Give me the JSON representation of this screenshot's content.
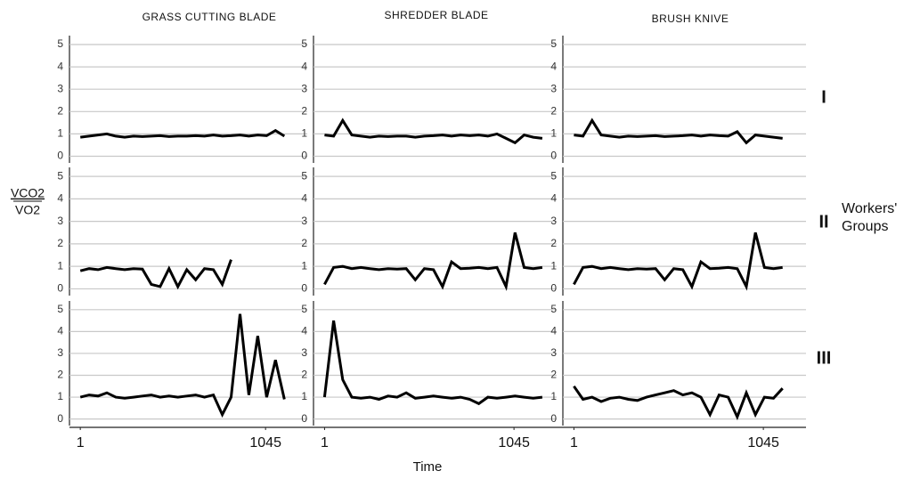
{
  "columns": [
    "GRASS CUTTING BLADE",
    "SHREDDER BLADE",
    "BRUSH KNIVE"
  ],
  "rows": [
    "I",
    "II",
    "III"
  ],
  "y_label_numerator": "VCO2",
  "y_label_denominator": "VO2",
  "row_axis_title": "Workers' Groups",
  "x_label": "Time",
  "chart_data": [
    {
      "type": "line",
      "color": "#000000",
      "grid": true,
      "xlim": [
        -60,
        1280
      ],
      "ylim": [
        -0.3,
        5.4
      ],
      "yticks": [
        0,
        1,
        2,
        3,
        4,
        5
      ],
      "x": [
        1,
        51,
        101,
        151,
        201,
        251,
        301,
        351,
        401,
        451,
        501,
        551,
        601,
        651,
        701,
        751,
        801,
        851,
        901,
        951,
        1001,
        1051,
        1101,
        1151
      ],
      "values": [
        0.85,
        0.9,
        0.95,
        1.0,
        0.9,
        0.85,
        0.9,
        0.88,
        0.9,
        0.92,
        0.88,
        0.9,
        0.9,
        0.92,
        0.9,
        0.95,
        0.9,
        0.92,
        0.95,
        0.9,
        0.95,
        0.92,
        1.15,
        0.9
      ]
    },
    {
      "type": "line",
      "color": "#000000",
      "grid": true,
      "xlim": [
        -60,
        1280
      ],
      "ylim": [
        -0.3,
        5.4
      ],
      "yticks": [
        0,
        1,
        2,
        3,
        4,
        5
      ],
      "x": [
        1,
        51,
        101,
        151,
        201,
        251,
        301,
        351,
        401,
        451,
        501,
        551,
        601,
        651,
        701,
        751,
        801,
        851,
        901,
        951,
        1001,
        1051,
        1101,
        1151,
        1201
      ],
      "values": [
        0.95,
        0.9,
        1.6,
        0.95,
        0.9,
        0.85,
        0.9,
        0.88,
        0.9,
        0.9,
        0.85,
        0.9,
        0.92,
        0.95,
        0.9,
        0.95,
        0.92,
        0.95,
        0.9,
        1.0,
        0.8,
        0.6,
        0.95,
        0.85,
        0.8
      ]
    },
    {
      "type": "line",
      "color": "#000000",
      "grid": true,
      "xlim": [
        -60,
        1280
      ],
      "ylim": [
        -0.3,
        5.4
      ],
      "yticks": [
        0,
        1,
        2,
        3,
        4,
        5
      ],
      "x": [
        1,
        51,
        101,
        151,
        201,
        251,
        301,
        351,
        401,
        451,
        501,
        551,
        601,
        651,
        701,
        751,
        801,
        851,
        901,
        951,
        1001,
        1051,
        1101,
        1151
      ],
      "values": [
        0.95,
        0.9,
        1.6,
        0.95,
        0.9,
        0.85,
        0.9,
        0.88,
        0.9,
        0.92,
        0.88,
        0.9,
        0.92,
        0.95,
        0.9,
        0.95,
        0.92,
        0.9,
        1.1,
        0.6,
        0.95,
        0.9,
        0.85,
        0.8
      ]
    },
    {
      "type": "line",
      "color": "#000000",
      "grid": true,
      "xlim": [
        -60,
        1280
      ],
      "ylim": [
        -0.3,
        5.4
      ],
      "yticks": [
        0,
        1,
        2,
        3,
        4,
        5
      ],
      "x": [
        1,
        51,
        101,
        151,
        201,
        251,
        301,
        351,
        401,
        451,
        501,
        551,
        601,
        651,
        701,
        751,
        801,
        851
      ],
      "values": [
        0.8,
        0.9,
        0.85,
        0.95,
        0.9,
        0.85,
        0.9,
        0.88,
        0.2,
        0.1,
        0.9,
        0.1,
        0.85,
        0.4,
        0.9,
        0.85,
        0.2,
        1.3
      ]
    },
    {
      "type": "line",
      "color": "#000000",
      "grid": true,
      "xlim": [
        -60,
        1280
      ],
      "ylim": [
        -0.3,
        5.4
      ],
      "yticks": [
        0,
        1,
        2,
        3,
        4,
        5
      ],
      "x": [
        1,
        51,
        101,
        151,
        201,
        251,
        301,
        351,
        401,
        451,
        501,
        551,
        601,
        651,
        701,
        751,
        801,
        851,
        901,
        951,
        1001,
        1051,
        1101,
        1151,
        1201
      ],
      "values": [
        0.2,
        0.95,
        1.0,
        0.9,
        0.95,
        0.9,
        0.85,
        0.9,
        0.88,
        0.9,
        0.4,
        0.9,
        0.85,
        0.1,
        1.2,
        0.9,
        0.92,
        0.95,
        0.9,
        0.95,
        0.1,
        2.5,
        0.95,
        0.9,
        0.95
      ]
    },
    {
      "type": "line",
      "color": "#000000",
      "grid": true,
      "xlim": [
        -60,
        1280
      ],
      "ylim": [
        -0.3,
        5.4
      ],
      "yticks": [
        0,
        1,
        2,
        3,
        4,
        5
      ],
      "x": [
        1,
        51,
        101,
        151,
        201,
        251,
        301,
        351,
        401,
        451,
        501,
        551,
        601,
        651,
        701,
        751,
        801,
        851,
        901,
        951,
        1001,
        1051,
        1101,
        1151
      ],
      "values": [
        0.2,
        0.95,
        1.0,
        0.9,
        0.95,
        0.9,
        0.85,
        0.9,
        0.88,
        0.9,
        0.4,
        0.9,
        0.85,
        0.1,
        1.2,
        0.9,
        0.92,
        0.95,
        0.9,
        0.1,
        2.5,
        0.95,
        0.9,
        0.95
      ]
    },
    {
      "type": "line",
      "color": "#000000",
      "grid": true,
      "xlim": [
        -60,
        1280
      ],
      "ylim": [
        -0.3,
        5.4
      ],
      "yticks": [
        0,
        1,
        2,
        3,
        4,
        5
      ],
      "xticks": [
        1,
        1045
      ],
      "x": [
        1,
        51,
        101,
        151,
        201,
        251,
        301,
        351,
        401,
        451,
        501,
        551,
        601,
        651,
        701,
        751,
        801,
        851,
        901,
        951,
        1001,
        1051,
        1101,
        1151
      ],
      "values": [
        1.0,
        1.1,
        1.05,
        1.2,
        1.0,
        0.95,
        1.0,
        1.05,
        1.1,
        1.0,
        1.05,
        1.0,
        1.05,
        1.1,
        1.0,
        1.1,
        0.2,
        1.0,
        4.8,
        1.1,
        3.8,
        1.0,
        2.7,
        0.9
      ]
    },
    {
      "type": "line",
      "color": "#000000",
      "grid": true,
      "xlim": [
        -60,
        1280
      ],
      "ylim": [
        -0.3,
        5.4
      ],
      "yticks": [
        0,
        1,
        2,
        3,
        4,
        5
      ],
      "xticks": [
        1,
        1045
      ],
      "x": [
        1,
        51,
        101,
        151,
        201,
        251,
        301,
        351,
        401,
        451,
        501,
        551,
        601,
        651,
        701,
        751,
        801,
        851,
        901,
        951,
        1001,
        1051,
        1101,
        1151,
        1201
      ],
      "values": [
        1.0,
        4.5,
        1.8,
        1.0,
        0.95,
        1.0,
        0.9,
        1.05,
        1.0,
        1.2,
        0.95,
        1.0,
        1.05,
        1.0,
        0.95,
        1.0,
        0.9,
        0.7,
        1.0,
        0.95,
        1.0,
        1.05,
        1.0,
        0.95,
        1.0
      ]
    },
    {
      "type": "line",
      "color": "#000000",
      "grid": true,
      "xlim": [
        -60,
        1280
      ],
      "ylim": [
        -0.3,
        5.4
      ],
      "yticks": [
        0,
        1,
        2,
        3,
        4,
        5
      ],
      "xticks": [
        1,
        1045
      ],
      "x": [
        1,
        51,
        101,
        151,
        201,
        251,
        301,
        351,
        401,
        451,
        501,
        551,
        601,
        651,
        701,
        751,
        801,
        851,
        901,
        951,
        1001,
        1051,
        1101,
        1151
      ],
      "values": [
        1.5,
        0.9,
        1.0,
        0.8,
        0.95,
        1.0,
        0.9,
        0.85,
        1.0,
        1.1,
        1.2,
        1.3,
        1.1,
        1.2,
        1.0,
        0.2,
        1.1,
        1.0,
        0.1,
        1.2,
        0.2,
        1.0,
        0.95,
        1.4
      ]
    }
  ]
}
